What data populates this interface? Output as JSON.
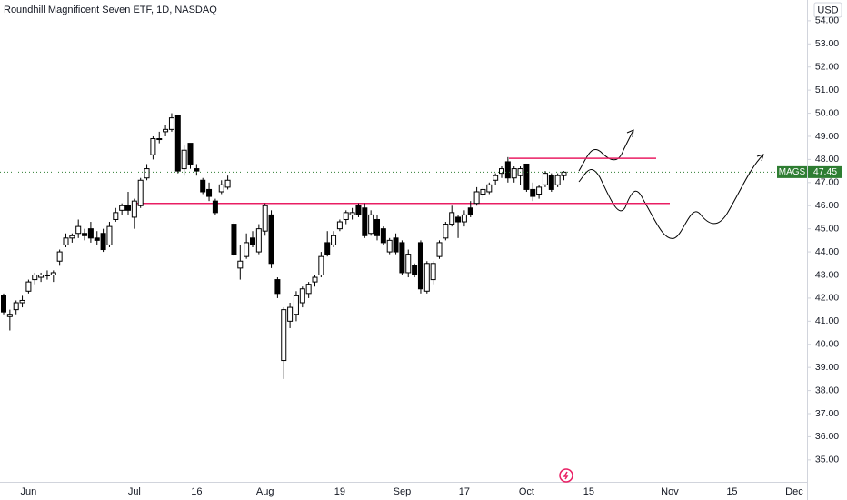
{
  "chart_data": {
    "type": "candlestick",
    "title": "Roundhill Magnificent Seven ETF, 1D, NASDAQ",
    "currency": "USD",
    "symbol": "MAGS",
    "categories": [
      null,
      null,
      null,
      null,
      "Jun",
      null,
      null,
      null,
      null,
      null,
      null,
      null,
      null,
      null,
      null,
      null,
      null,
      null,
      null,
      null,
      null,
      "Jul",
      null,
      null,
      null,
      null,
      null,
      null,
      null,
      null,
      null,
      "16",
      null,
      null,
      null,
      null,
      null,
      null,
      null,
      null,
      null,
      null,
      "Aug",
      null,
      null,
      null,
      null,
      null,
      null,
      null,
      null,
      null,
      null,
      null,
      "19",
      null,
      null,
      null,
      null,
      null,
      null,
      null,
      null,
      null,
      "Sep",
      null,
      null,
      null,
      null,
      null,
      null,
      null,
      null,
      null,
      "17",
      null,
      null,
      null,
      null,
      null,
      null,
      null,
      null,
      null,
      "Oct",
      null,
      null,
      null,
      null,
      null,
      null,
      null,
      null,
      null,
      "15",
      null,
      null,
      null,
      null,
      null,
      null,
      null,
      null,
      null,
      null,
      null,
      null,
      "Nov",
      null,
      null,
      null,
      null,
      null,
      null,
      null,
      null,
      null,
      "15",
      null,
      null,
      null,
      null,
      null,
      null,
      null,
      null,
      null,
      "Dec",
      null,
      null
    ],
    "open": [
      42.1,
      41.2,
      41.5,
      41.8,
      42.3,
      42.8,
      42.9,
      43.0,
      43.0,
      43.6,
      44.3,
      44.6,
      44.8,
      44.8,
      45.0,
      44.6,
      44.8,
      44.3,
      45.4,
      45.8,
      46.0,
      45.5,
      46.0,
      47.2,
      48.2,
      48.9,
      49.2,
      49.3,
      49.9,
      47.6,
      48.7,
      47.6,
      47.1,
      46.7,
      46.2,
      46.6,
      46.8,
      45.2,
      43.3,
      43.8,
      44.6,
      44.0,
      44.9,
      45.6,
      42.8,
      39.3,
      41.0,
      41.3,
      41.8,
      42.2,
      42.7,
      43.0,
      44.4,
      44.3,
      45.0,
      45.4,
      45.6,
      46.0,
      45.9,
      44.8,
      45.4,
      45.0,
      44.0,
      44.6,
      44.4,
      43.1,
      43.4,
      44.4,
      42.3,
      42.8,
      43.8,
      44.6,
      45.2,
      45.5,
      45.3,
      45.9,
      46.1,
      46.5,
      46.6,
      47.1,
      47.4,
      47.9,
      47.2,
      47.3,
      47.8,
      46.7,
      46.5,
      46.9,
      47.3,
      46.9,
      47.3,
      null,
      null,
      null,
      null,
      null,
      null,
      null,
      null,
      null,
      null,
      null,
      null,
      null,
      null,
      null,
      null,
      null,
      null,
      null,
      null,
      null,
      null,
      null,
      null,
      null,
      null,
      null,
      null,
      null,
      null,
      null,
      null,
      null,
      null,
      null,
      null,
      null,
      null,
      null
    ],
    "high": [
      42.2,
      41.5,
      41.9,
      42.1,
      42.8,
      43.1,
      43.1,
      43.2,
      43.2,
      44.1,
      44.8,
      44.8,
      45.4,
      45.0,
      45.3,
      44.9,
      45.0,
      45.3,
      45.9,
      46.1,
      46.6,
      46.3,
      47.2,
      47.8,
      49.0,
      49.2,
      49.5,
      50.0,
      49.9,
      48.6,
      48.7,
      47.8,
      47.2,
      47.0,
      46.3,
      47.1,
      47.3,
      45.3,
      44.3,
      44.8,
      44.9,
      45.2,
      46.1,
      45.8,
      42.9,
      41.6,
      41.8,
      42.3,
      42.5,
      42.7,
      43.0,
      44.0,
      44.9,
      44.9,
      45.4,
      45.8,
      45.9,
      46.1,
      46.1,
      45.8,
      45.6,
      45.1,
      44.6,
      44.8,
      44.5,
      44.1,
      43.5,
      44.5,
      43.6,
      43.6,
      44.5,
      45.3,
      46.0,
      45.6,
      45.8,
      46.2,
      46.8,
      46.8,
      47.0,
      47.4,
      47.7,
      48.1,
      47.7,
      47.7,
      47.8,
      47.0,
      46.9,
      47.5,
      47.4,
      47.4,
      47.5,
      null,
      null,
      null,
      null,
      null,
      null,
      null,
      null,
      null,
      null,
      null,
      null,
      null,
      null,
      null,
      null,
      null,
      null,
      null,
      null,
      null,
      null,
      null,
      null,
      null,
      null,
      null,
      null,
      null,
      null,
      null,
      null,
      null,
      null,
      null,
      null,
      null,
      null,
      null
    ],
    "low": [
      41.3,
      40.6,
      41.3,
      41.6,
      42.2,
      42.6,
      42.7,
      42.8,
      42.7,
      43.4,
      44.2,
      44.4,
      44.6,
      44.5,
      44.4,
      44.3,
      44.0,
      44.2,
      45.3,
      45.6,
      45.6,
      45.0,
      45.9,
      47.1,
      48.0,
      48.7,
      49.0,
      49.2,
      47.4,
      47.3,
      47.6,
      47.3,
      46.5,
      46.2,
      45.6,
      46.5,
      46.7,
      43.8,
      42.8,
      43.7,
      44.2,
      43.9,
      44.7,
      43.3,
      42.0,
      38.5,
      40.7,
      41.0,
      41.6,
      42.0,
      42.5,
      42.9,
      43.8,
      44.2,
      44.9,
      45.2,
      45.4,
      45.5,
      44.6,
      44.7,
      44.5,
      44.3,
      43.9,
      43.9,
      43.0,
      42.9,
      42.9,
      42.2,
      42.2,
      42.6,
      43.7,
      44.5,
      45.1,
      44.6,
      45.1,
      45.5,
      46.0,
      46.3,
      46.5,
      46.9,
      47.2,
      47.0,
      47.0,
      46.9,
      46.6,
      46.2,
      46.3,
      46.8,
      46.6,
      46.8,
      47.1,
      null,
      null,
      null,
      null,
      null,
      null,
      null,
      null,
      null,
      null,
      null,
      null,
      null,
      null,
      null,
      null,
      null,
      null,
      null,
      null,
      null,
      null,
      null,
      null,
      null,
      null,
      null,
      null,
      null,
      null,
      null,
      null,
      null,
      null,
      null,
      null,
      null,
      null,
      null
    ],
    "close": [
      41.4,
      41.3,
      41.8,
      41.9,
      42.7,
      43.0,
      43.0,
      43.0,
      43.1,
      44.0,
      44.6,
      44.7,
      45.1,
      44.7,
      44.6,
      44.5,
      44.1,
      45.1,
      45.7,
      46.0,
      45.8,
      46.2,
      47.1,
      47.6,
      48.9,
      48.9,
      49.3,
      49.8,
      47.5,
      48.4,
      47.8,
      47.5,
      46.6,
      46.4,
      45.7,
      46.9,
      47.1,
      43.9,
      43.6,
      44.4,
      44.3,
      45.0,
      46.0,
      43.5,
      42.2,
      41.5,
      41.6,
      42.1,
      42.4,
      42.6,
      42.9,
      43.8,
      43.9,
      44.7,
      45.3,
      45.7,
      45.7,
      45.6,
      44.7,
      45.6,
      44.7,
      44.4,
      44.5,
      44.0,
      43.1,
      43.9,
      43.0,
      42.4,
      43.5,
      43.5,
      44.4,
      45.2,
      45.7,
      45.3,
      45.6,
      45.6,
      46.6,
      46.7,
      46.9,
      47.3,
      47.6,
      47.2,
      47.6,
      47.6,
      46.7,
      46.4,
      46.8,
      47.4,
      46.7,
      47.3,
      47.45,
      null,
      null,
      null,
      null,
      null,
      null,
      null,
      null,
      null,
      null,
      null,
      null,
      null,
      null,
      null,
      null,
      null,
      null,
      null,
      null,
      null,
      null,
      null,
      null,
      null,
      null,
      null,
      null,
      null,
      null,
      null,
      null,
      null,
      null,
      null,
      null,
      null,
      null,
      null
    ],
    "levels": [
      48.05,
      46.1
    ],
    "ylim": [
      34.05,
      54.9
    ],
    "yticks": [
      {
        "value": 35,
        "label": "35.00"
      },
      {
        "value": 36,
        "label": "36.00"
      },
      {
        "value": 37,
        "label": "37.00"
      },
      {
        "value": 38,
        "label": "38.00"
      },
      {
        "value": 39,
        "label": "39.00"
      },
      {
        "value": 40,
        "label": "40.00"
      },
      {
        "value": 41,
        "label": "41.00"
      },
      {
        "value": 42,
        "label": "42.00"
      },
      {
        "value": 43,
        "label": "43.00"
      },
      {
        "value": 44,
        "label": "44.00"
      },
      {
        "value": 45,
        "label": "45.00"
      },
      {
        "value": 46,
        "label": "46.00"
      },
      {
        "value": 47,
        "label": "47.00"
      },
      {
        "value": 48,
        "label": "48.00"
      },
      {
        "value": 49,
        "label": "49.00"
      },
      {
        "value": 50,
        "label": "50.00"
      },
      {
        "value": 51,
        "label": "51.00"
      },
      {
        "value": 52,
        "label": "52.00"
      },
      {
        "value": 53,
        "label": "53.00"
      },
      {
        "value": 54,
        "label": "54.00"
      }
    ],
    "up_color": "#ffffff",
    "down_color": "#000000",
    "level_color": "#e91e63",
    "price_color": "#2e7d32"
  }
}
